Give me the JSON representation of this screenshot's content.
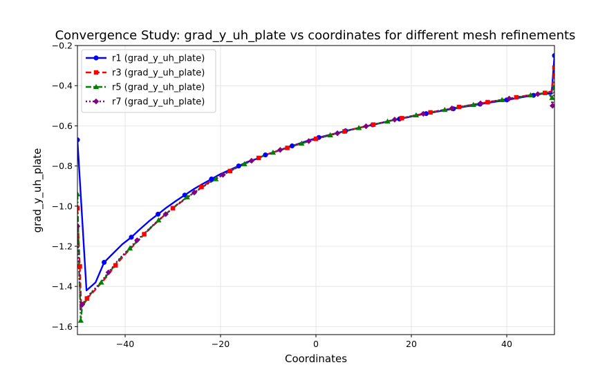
{
  "chart_data": {
    "type": "line",
    "title": "Convergence Study: grad_y_uh_plate vs coordinates for different mesh refinements",
    "xlabel": "Coordinates",
    "ylabel": "grad_y_uh_plate",
    "xlim": [
      -50,
      50
    ],
    "ylim": [
      -1.64,
      -0.2
    ],
    "xticks": [
      -40,
      -20,
      0,
      20,
      40
    ],
    "yticks": [
      -1.6,
      -1.4,
      -1.2,
      -1.0,
      -0.8,
      -0.6,
      -0.4,
      -0.2
    ],
    "xtick_labels": [
      "−40",
      "−20",
      "0",
      "20",
      "40"
    ],
    "ytick_labels": [
      "−1.6",
      "−1.4",
      "−1.2",
      "−1.0",
      "−0.8",
      "−0.6",
      "−0.4",
      "−0.2"
    ],
    "grid": true,
    "legend_position": "upper-left",
    "series": [
      {
        "name": "r1 (grad_y_uh_plate)",
        "color": "#0000ff",
        "dash": "solid",
        "marker": "circle",
        "x": [
          -50,
          -48.1,
          -46.2,
          -44.4,
          -42.5,
          -40.6,
          -38.7,
          -36.9,
          -35.0,
          -33.1,
          -31.2,
          -29.4,
          -27.5,
          -25.6,
          -23.8,
          -21.9,
          -20.0,
          -18.1,
          -16.2,
          -14.4,
          -12.5,
          -10.6,
          -8.7,
          -6.9,
          -5.0,
          -3.1,
          -1.2,
          0.6,
          2.5,
          4.4,
          6.2,
          8.1,
          10.0,
          11.9,
          13.8,
          15.6,
          17.5,
          19.4,
          21.2,
          23.1,
          25.0,
          26.9,
          28.8,
          30.6,
          32.5,
          34.4,
          36.2,
          38.1,
          40.0,
          41.9,
          43.8,
          45.6,
          47.5,
          49.4,
          50.0
        ],
        "y": [
          -0.67,
          -1.42,
          -1.38,
          -1.28,
          -1.235,
          -1.19,
          -1.155,
          -1.115,
          -1.075,
          -1.04,
          -1.005,
          -0.975,
          -0.945,
          -0.915,
          -0.89,
          -0.865,
          -0.84,
          -0.82,
          -0.8,
          -0.78,
          -0.765,
          -0.745,
          -0.73,
          -0.715,
          -0.7,
          -0.685,
          -0.67,
          -0.658,
          -0.647,
          -0.636,
          -0.625,
          -0.615,
          -0.605,
          -0.595,
          -0.585,
          -0.575,
          -0.566,
          -0.557,
          -0.548,
          -0.539,
          -0.531,
          -0.523,
          -0.515,
          -0.507,
          -0.5,
          -0.492,
          -0.485,
          -0.478,
          -0.471,
          -0.463,
          -0.455,
          -0.448,
          -0.44,
          -0.44,
          -0.25
        ]
      },
      {
        "name": "r3 (grad_y_uh_plate)",
        "color": "#ff0000",
        "dash": "dashed",
        "marker": "square",
        "x": [
          -50,
          -49.5,
          -49.2,
          -49.0,
          -48.0,
          -46.0,
          -44.0,
          -42.0,
          -40.0,
          -38.0,
          -36.0,
          -34.0,
          -32.0,
          -30.0,
          -28.0,
          -26.0,
          -24.0,
          -22.0,
          -20.0,
          -18.0,
          -16.0,
          -14.0,
          -12.0,
          -10.0,
          -8.0,
          -6.0,
          -4.0,
          -2.0,
          0.0,
          2.0,
          4.0,
          6.0,
          8.0,
          10.0,
          12.0,
          14.0,
          16.0,
          18.0,
          20.0,
          22.0,
          24.0,
          26.0,
          28.0,
          30.0,
          32.0,
          34.0,
          36.0,
          38.0,
          40.0,
          42.0,
          44.0,
          46.0,
          48.0,
          49.3,
          49.6,
          50.0
        ],
        "y": [
          -1.01,
          -1.3,
          -1.5,
          -1.49,
          -1.46,
          -1.41,
          -1.355,
          -1.295,
          -1.24,
          -1.19,
          -1.14,
          -1.095,
          -1.05,
          -1.01,
          -0.975,
          -0.94,
          -0.905,
          -0.875,
          -0.85,
          -0.825,
          -0.8,
          -0.78,
          -0.76,
          -0.74,
          -0.725,
          -0.71,
          -0.695,
          -0.68,
          -0.665,
          -0.652,
          -0.64,
          -0.628,
          -0.616,
          -0.605,
          -0.594,
          -0.583,
          -0.572,
          -0.562,
          -0.552,
          -0.542,
          -0.533,
          -0.524,
          -0.515,
          -0.506,
          -0.498,
          -0.49,
          -0.482,
          -0.474,
          -0.466,
          -0.458,
          -0.45,
          -0.443,
          -0.436,
          -0.43,
          -0.4,
          -0.31
        ]
      },
      {
        "name": "r5 (grad_y_uh_plate)",
        "color": "#008000",
        "dash": "dashdot",
        "marker": "triangle",
        "x": [
          -50,
          -49.6,
          -49.3,
          -49.0,
          -47.0,
          -45.0,
          -43.0,
          -41.0,
          -39.0,
          -37.0,
          -35.0,
          -33.0,
          -31.0,
          -29.0,
          -27.0,
          -25.0,
          -23.0,
          -21.0,
          -19.0,
          -17.0,
          -15.0,
          -13.0,
          -11.0,
          -9.0,
          -7.0,
          -5.0,
          -3.0,
          -1.0,
          1.0,
          3.0,
          5.0,
          7.0,
          9.0,
          11.0,
          13.0,
          15.0,
          17.0,
          19.0,
          21.0,
          23.0,
          25.0,
          27.0,
          29.0,
          31.0,
          33.0,
          35.0,
          37.0,
          39.0,
          41.0,
          43.0,
          45.0,
          47.0,
          48.5,
          49.5,
          50.0
        ],
        "y": [
          -0.94,
          -1.35,
          -1.57,
          -1.5,
          -1.43,
          -1.38,
          -1.32,
          -1.26,
          -1.21,
          -1.165,
          -1.115,
          -1.07,
          -1.03,
          -0.99,
          -0.955,
          -0.925,
          -0.893,
          -0.865,
          -0.838,
          -0.813,
          -0.79,
          -0.77,
          -0.75,
          -0.733,
          -0.717,
          -0.702,
          -0.688,
          -0.673,
          -0.659,
          -0.646,
          -0.634,
          -0.622,
          -0.61,
          -0.6,
          -0.589,
          -0.578,
          -0.567,
          -0.557,
          -0.547,
          -0.538,
          -0.529,
          -0.52,
          -0.511,
          -0.503,
          -0.495,
          -0.487,
          -0.479,
          -0.471,
          -0.463,
          -0.455,
          -0.447,
          -0.44,
          -0.435,
          -0.46,
          -0.37
        ]
      },
      {
        "name": "r7 (grad_y_uh_plate)",
        "color": "#800080",
        "dash": "dotted",
        "marker": "diamond",
        "x": [
          -50,
          -49.6,
          -49.3,
          -49.0,
          -47.5,
          -45.5,
          -43.5,
          -41.5,
          -39.5,
          -37.5,
          -35.5,
          -33.5,
          -31.5,
          -29.5,
          -27.5,
          -25.5,
          -23.5,
          -21.5,
          -19.5,
          -17.5,
          -15.5,
          -13.5,
          -11.5,
          -9.5,
          -7.5,
          -5.5,
          -3.5,
          -1.5,
          0.5,
          2.5,
          4.5,
          6.5,
          8.5,
          10.5,
          12.5,
          14.5,
          16.5,
          18.5,
          20.5,
          22.5,
          24.5,
          26.5,
          28.5,
          30.5,
          32.5,
          34.5,
          36.5,
          38.5,
          40.5,
          42.5,
          44.5,
          46.5,
          48.0,
          49.0,
          49.6,
          50.0
        ],
        "y": [
          -1.1,
          -1.36,
          -1.52,
          -1.49,
          -1.44,
          -1.39,
          -1.33,
          -1.27,
          -1.22,
          -1.17,
          -1.125,
          -1.08,
          -1.04,
          -1.0,
          -0.965,
          -0.932,
          -0.9,
          -0.871,
          -0.844,
          -0.819,
          -0.795,
          -0.774,
          -0.754,
          -0.736,
          -0.72,
          -0.705,
          -0.69,
          -0.676,
          -0.662,
          -0.649,
          -0.637,
          -0.625,
          -0.613,
          -0.602,
          -0.591,
          -0.58,
          -0.569,
          -0.559,
          -0.549,
          -0.54,
          -0.531,
          -0.522,
          -0.513,
          -0.505,
          -0.496,
          -0.488,
          -0.48,
          -0.472,
          -0.464,
          -0.456,
          -0.448,
          -0.442,
          -0.436,
          -0.43,
          -0.5,
          -0.42
        ]
      }
    ]
  }
}
